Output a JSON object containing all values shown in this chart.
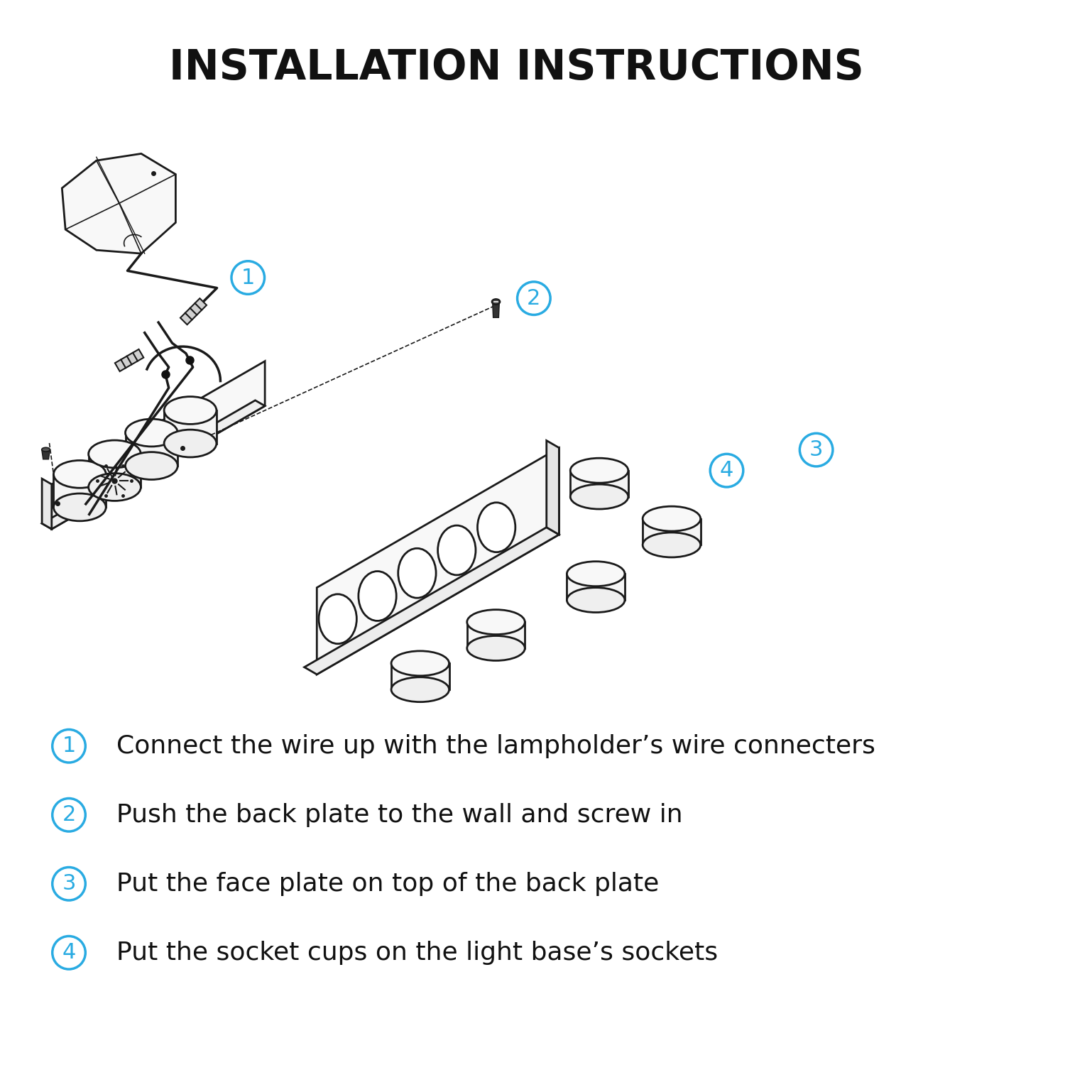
{
  "title": "INSTALLATION INSTRUCTIONS",
  "title_fontsize": 42,
  "title_fontweight": "bold",
  "background_color": "#ffffff",
  "cyan_color": "#29ABE2",
  "line_color": "#1a1a1a",
  "steps": [
    {
      "num": "①",
      "text": "  Connect the wire up with the lampholder’s wire connecters"
    },
    {
      "num": "②",
      "text": "  Push the back plate to the wall and screw in"
    },
    {
      "num": "③",
      "text": "  Put the face plate on top of the back plate"
    },
    {
      "num": "④",
      "text": "  Put the socket cups on the light base’s sockets"
    }
  ],
  "step_fontsize": 26
}
